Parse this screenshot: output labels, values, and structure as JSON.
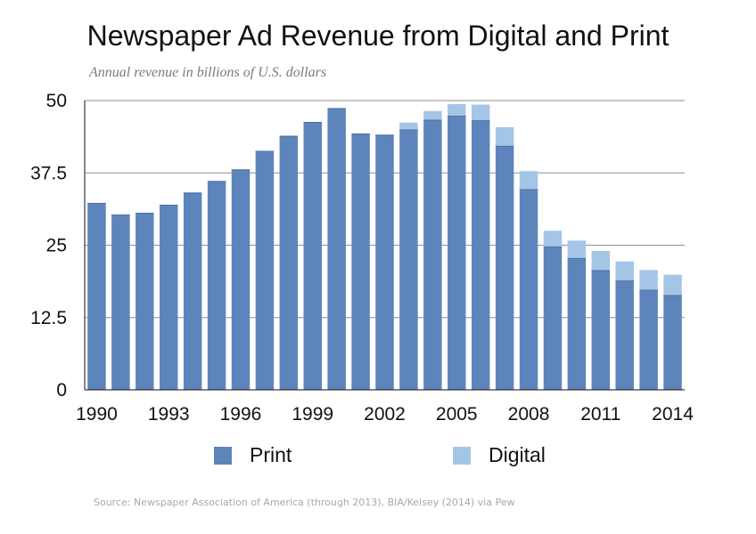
{
  "chart_data": {
    "type": "bar",
    "stacked": true,
    "title": "Newspaper Ad Revenue from Digital and Print",
    "subtitle": "Annual revenue in billions of U.S. dollars",
    "categories": [
      "1990",
      "1991",
      "1992",
      "1993",
      "1994",
      "1995",
      "1996",
      "1997",
      "1998",
      "1999",
      "2000",
      "2001",
      "2002",
      "2003",
      "2004",
      "2005",
      "2006",
      "2007",
      "2008",
      "2009",
      "2010",
      "2011",
      "2012",
      "2013",
      "2014"
    ],
    "x_tick_labels": [
      "1990",
      "1993",
      "1996",
      "1999",
      "2002",
      "2005",
      "2008",
      "2011",
      "2014"
    ],
    "series": [
      {
        "name": "Print",
        "color": "#5e84bc",
        "values": [
          32.3,
          30.3,
          30.6,
          32.0,
          34.1,
          36.1,
          38.1,
          41.3,
          43.9,
          46.3,
          48.7,
          44.3,
          44.1,
          45.0,
          46.7,
          47.4,
          46.6,
          42.2,
          34.7,
          24.8,
          22.8,
          20.7,
          18.9,
          17.3,
          16.4
        ]
      },
      {
        "name": "Digital",
        "color": "#a4c5e6",
        "values": [
          0,
          0,
          0,
          0,
          0,
          0,
          0,
          0,
          0,
          0,
          0,
          0,
          0,
          1.2,
          1.5,
          2.0,
          2.7,
          3.2,
          3.1,
          2.7,
          3.0,
          3.3,
          3.3,
          3.4,
          3.5
        ]
      }
    ],
    "yticks": [
      "0",
      "12.5",
      "25",
      "37.5",
      "50"
    ],
    "ylim": [
      0,
      50
    ],
    "grid": true,
    "legend_position": "bottom"
  },
  "source": "Source: Newspaper Association of America (through 2013), BIA/Kelsey (2014) via Pew"
}
